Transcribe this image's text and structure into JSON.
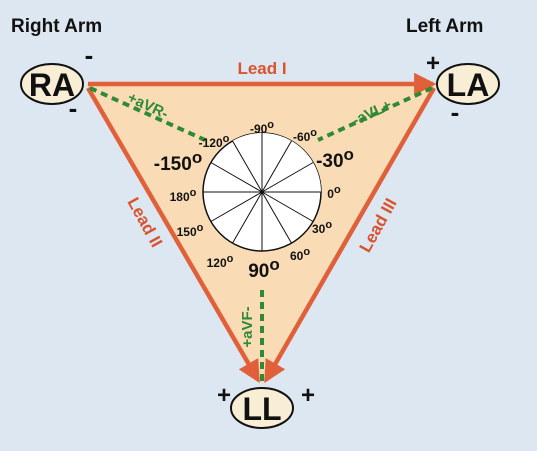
{
  "colors": {
    "background": "#dde7f1",
    "triangle_fill": "#f9dcb5",
    "lead_line": "#e0603a",
    "lead_text": "#d9542e",
    "augmented": "#2f8a36",
    "node_fill": "#f8eed6",
    "circle_fill": "#ffffff",
    "ink": "#111111"
  },
  "titles": {
    "right_arm": "Right Arm",
    "left_arm": "Left Arm"
  },
  "electrodes": {
    "ra": {
      "label": "RA",
      "signs": [
        "-",
        "-"
      ]
    },
    "la": {
      "label": "LA",
      "signs": [
        "+",
        "-"
      ]
    },
    "ll": {
      "label": "LL",
      "signs": [
        "+",
        "+"
      ]
    }
  },
  "leads": {
    "lead_i": "Lead I",
    "lead_ii": "Lead II",
    "lead_iii": "Lead III"
  },
  "augmented_leads": {
    "avr": "+aVR-",
    "avl": "-aVL+",
    "avf": "+aVF-"
  },
  "angles": {
    "m120": "-120",
    "m90": "-90",
    "m60": "-60",
    "m150": "-150",
    "m30": "-30",
    "p180": "180",
    "p0": "0",
    "p150": "150",
    "p30": "30",
    "p120": "120",
    "p90": "90",
    "p60": "60",
    "degree_mark": "o"
  }
}
